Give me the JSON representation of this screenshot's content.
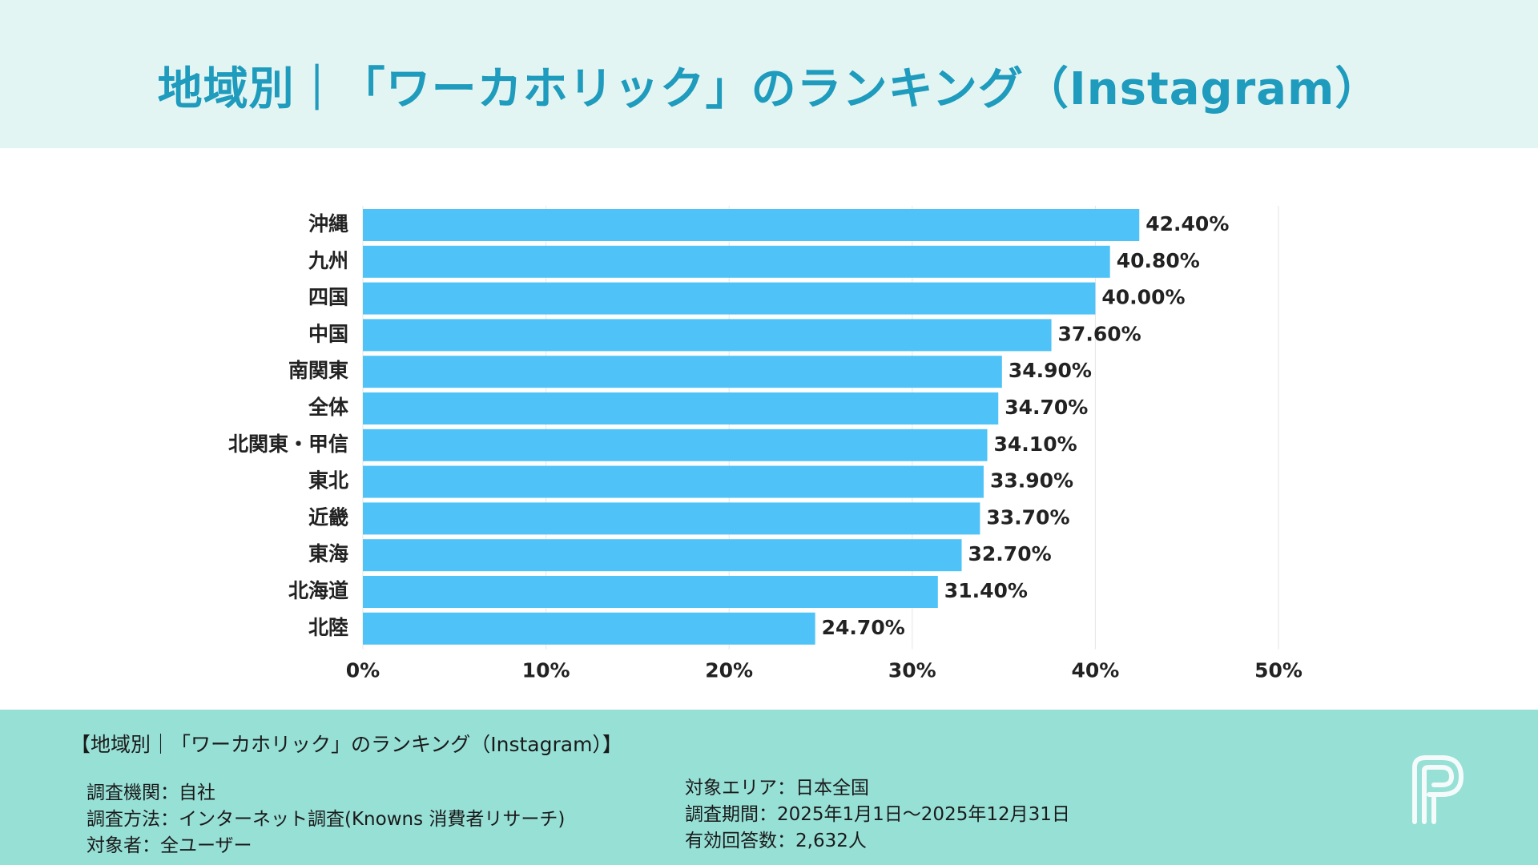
{
  "title": "地域別｜「ワーカホリック」のランキング（Instagram）",
  "chart_data": {
    "type": "bar",
    "orientation": "horizontal",
    "categories": [
      "沖縄",
      "九州",
      "四国",
      "中国",
      "南関東",
      "全体",
      "北関東・甲信",
      "東北",
      "近畿",
      "東海",
      "北海道",
      "北陸"
    ],
    "values": [
      42.4,
      40.8,
      40.0,
      37.6,
      34.9,
      34.7,
      34.1,
      33.9,
      33.7,
      32.7,
      31.4,
      24.7
    ],
    "value_labels": [
      "42.40%",
      "40.80%",
      "40.00%",
      "37.60%",
      "34.90%",
      "34.70%",
      "34.10%",
      "33.90%",
      "33.70%",
      "32.70%",
      "31.40%",
      "24.70%"
    ],
    "x_ticks": [
      0,
      10,
      20,
      30,
      40,
      50
    ],
    "x_tick_labels": [
      "0%",
      "10%",
      "20%",
      "30%",
      "40%",
      "50%"
    ],
    "xlim": [
      0,
      50
    ],
    "grid": true,
    "bar_color": "#4fc3f7"
  },
  "footer": {
    "title": "【地域別｜「ワーカホリック」のランキング（Instagram）】",
    "left": [
      "調査機関：自社",
      "調査方法：インターネット調査(Knowns 消費者リサーチ)",
      "対象者：全ユーザー"
    ],
    "right": [
      "対象エリア：日本全国",
      "調査期間：2025年1月1日〜2025年12月31日",
      "有効回答数：2,632人"
    ]
  },
  "logo_icon": "p-logo-icon",
  "colors": {
    "header_bg": "#e3f5f2",
    "title": "#1e9bbd",
    "footer_bg": "#97e0d6",
    "bar": "#4fc3f7"
  }
}
